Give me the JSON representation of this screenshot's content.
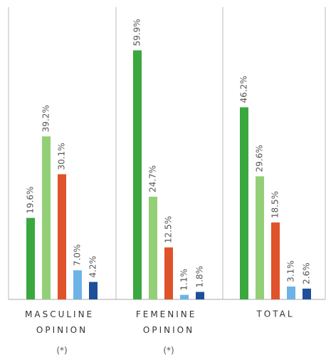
{
  "chart_data": {
    "type": "bar",
    "categories": [
      "MASCULINE OPINION",
      "FEMENINE OPINION",
      "TOTAL"
    ],
    "category_notes": [
      "(*)",
      "(*)",
      null
    ],
    "series": [
      {
        "color": "#3aa83f",
        "values": [
          19.6,
          59.9,
          46.2
        ],
        "value_labels": [
          "19.6%",
          "59.9%",
          "46.2%"
        ]
      },
      {
        "color": "#93cf77",
        "values": [
          39.2,
          24.7,
          29.6
        ],
        "value_labels": [
          "39.2%",
          "24.7%",
          "29.6%"
        ]
      },
      {
        "color": "#e0522a",
        "values": [
          30.1,
          12.5,
          18.5
        ],
        "value_labels": [
          "30.1%",
          "12.5%",
          "18.5%"
        ]
      },
      {
        "color": "#6db3e6",
        "values": [
          7.0,
          1.1,
          3.1
        ],
        "value_labels": [
          "7.0%",
          "1.1%",
          "3.1%"
        ]
      },
      {
        "color": "#1f4e9a",
        "values": [
          4.2,
          1.8,
          2.6
        ],
        "value_labels": [
          "4.2%",
          "1.8%",
          "2.6%"
        ]
      }
    ],
    "ylim": [
      0,
      60
    ]
  }
}
